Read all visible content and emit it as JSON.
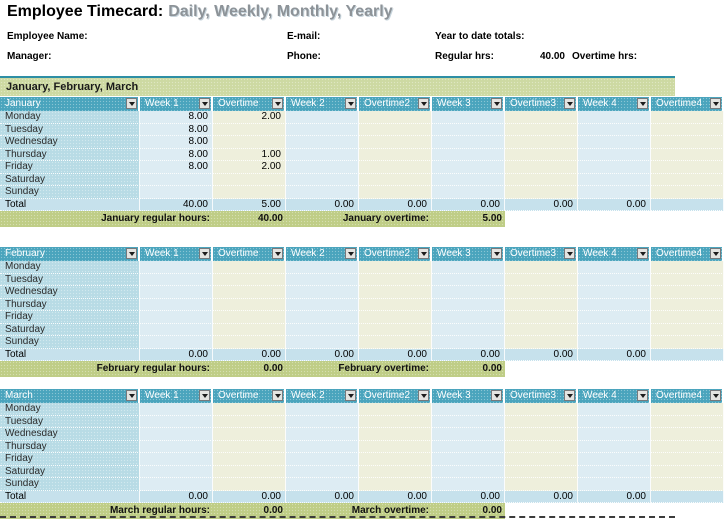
{
  "title": {
    "main": "Employee Timecard:",
    "subtitle": "Daily, Weekly, Monthly, Yearly"
  },
  "info": {
    "employee_name_label": "Employee Name:",
    "manager_label": "Manager:",
    "email_label": "E-mail:",
    "phone_label": "Phone:",
    "ytd_totals_label": "Year to date totals:",
    "regular_hrs_label": "Regular hrs:",
    "regular_hrs_value": "40.00",
    "overtime_hrs_label": "Overtime hrs:"
  },
  "band_title": "January, February, March",
  "columns": [
    "Week 1",
    "Overtime",
    "Week 2",
    "Overtime2",
    "Week 3",
    "Overtime3",
    "Week 4",
    "Overtime4"
  ],
  "months": [
    {
      "name": "January",
      "rows": [
        {
          "day": "Monday",
          "cells": [
            "8.00",
            "2.00",
            "",
            "",
            "",
            "",
            "",
            ""
          ]
        },
        {
          "day": "Tuesday",
          "cells": [
            "8.00",
            "",
            "",
            "",
            "",
            "",
            "",
            ""
          ]
        },
        {
          "day": "Wednesday",
          "cells": [
            "8.00",
            "",
            "",
            "",
            "",
            "",
            "",
            ""
          ]
        },
        {
          "day": "Thursday",
          "cells": [
            "8.00",
            "1.00",
            "",
            "",
            "",
            "",
            "",
            ""
          ]
        },
        {
          "day": "Friday",
          "cells": [
            "8.00",
            "2.00",
            "",
            "",
            "",
            "",
            "",
            ""
          ]
        },
        {
          "day": "Saturday",
          "cells": [
            "",
            "",
            "",
            "",
            "",
            "",
            "",
            ""
          ]
        },
        {
          "day": "Sunday",
          "cells": [
            "",
            "",
            "",
            "",
            "",
            "",
            "",
            ""
          ]
        }
      ],
      "total_label": "Total",
      "totals": [
        "40.00",
        "5.00",
        "0.00",
        "0.00",
        "0.00",
        "0.00",
        "0.00",
        ""
      ],
      "summary": {
        "regular_label": "January regular hours:",
        "regular_value": "40.00",
        "overtime_label": "January overtime:",
        "overtime_value": "5.00"
      }
    },
    {
      "name": "February",
      "rows": [
        {
          "day": "Monday",
          "cells": [
            "",
            "",
            "",
            "",
            "",
            "",
            "",
            ""
          ]
        },
        {
          "day": "Tuesday",
          "cells": [
            "",
            "",
            "",
            "",
            "",
            "",
            "",
            ""
          ]
        },
        {
          "day": "Wednesday",
          "cells": [
            "",
            "",
            "",
            "",
            "",
            "",
            "",
            ""
          ]
        },
        {
          "day": "Thursday",
          "cells": [
            "",
            "",
            "",
            "",
            "",
            "",
            "",
            ""
          ]
        },
        {
          "day": "Friday",
          "cells": [
            "",
            "",
            "",
            "",
            "",
            "",
            "",
            ""
          ]
        },
        {
          "day": "Saturday",
          "cells": [
            "",
            "",
            "",
            "",
            "",
            "",
            "",
            ""
          ]
        },
        {
          "day": "Sunday",
          "cells": [
            "",
            "",
            "",
            "",
            "",
            "",
            "",
            ""
          ]
        }
      ],
      "total_label": "Total",
      "totals": [
        "0.00",
        "0.00",
        "0.00",
        "0.00",
        "0.00",
        "0.00",
        "0.00",
        ""
      ],
      "summary": {
        "regular_label": "February regular hours:",
        "regular_value": "0.00",
        "overtime_label": "February overtime:",
        "overtime_value": "0.00"
      }
    },
    {
      "name": "March",
      "rows": [
        {
          "day": "Monday",
          "cells": [
            "",
            "",
            "",
            "",
            "",
            "",
            "",
            ""
          ]
        },
        {
          "day": "Tuesday",
          "cells": [
            "",
            "",
            "",
            "",
            "",
            "",
            "",
            ""
          ]
        },
        {
          "day": "Wednesday",
          "cells": [
            "",
            "",
            "",
            "",
            "",
            "",
            "",
            ""
          ]
        },
        {
          "day": "Thursday",
          "cells": [
            "",
            "",
            "",
            "",
            "",
            "",
            "",
            ""
          ]
        },
        {
          "day": "Friday",
          "cells": [
            "",
            "",
            "",
            "",
            "",
            "",
            "",
            ""
          ]
        },
        {
          "day": "Saturday",
          "cells": [
            "",
            "",
            "",
            "",
            "",
            "",
            "",
            ""
          ]
        },
        {
          "day": "Sunday",
          "cells": [
            "",
            "",
            "",
            "",
            "",
            "",
            "",
            ""
          ]
        }
      ],
      "total_label": "Total",
      "totals": [
        "0.00",
        "0.00",
        "0.00",
        "0.00",
        "0.00",
        "0.00",
        "0.00",
        ""
      ],
      "summary": {
        "regular_label": "March regular hours:",
        "regular_value": "0.00",
        "overtime_label": "March overtime:",
        "overtime_value": "0.00"
      }
    }
  ],
  "colors": {
    "header_teal": "#4aa4bd",
    "band_green": "#cdd9a2",
    "band_border": "#2e8fa5",
    "summary_green": "#bfcd86",
    "day_col": "#b8dbe5",
    "week_cell": "#ddecf3",
    "overtime_cell": "#eeefdc",
    "total_row": "#c6e1ec",
    "subtitle_gray": "#8d9398"
  }
}
